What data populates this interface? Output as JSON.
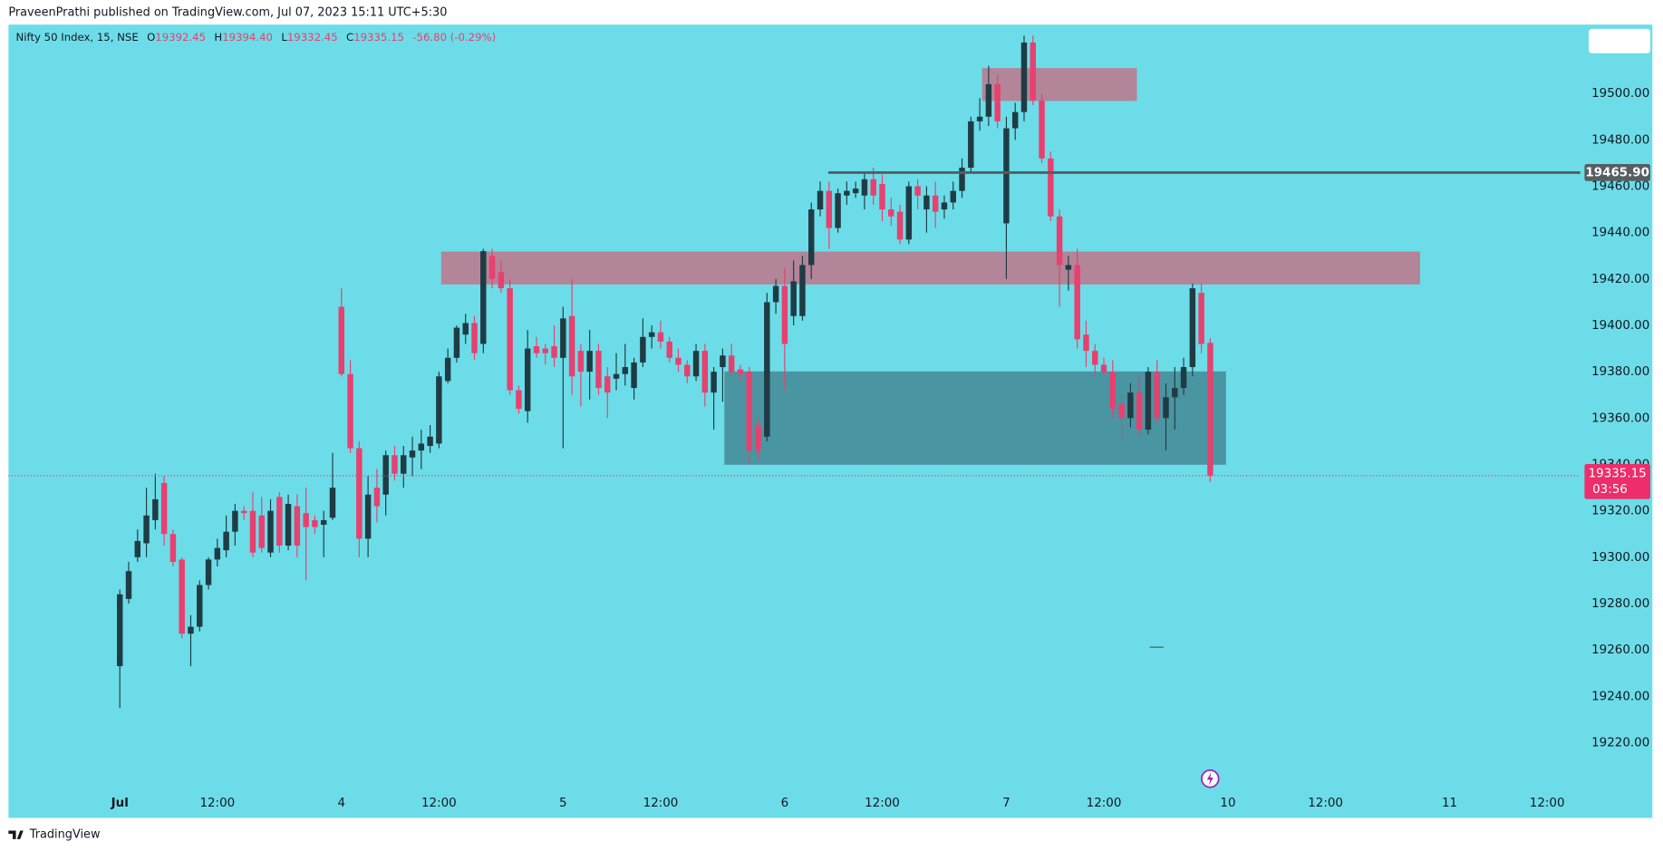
{
  "header": {
    "publisher": "PraveenPrathi published on TradingView.com, Jul 07, 2023 15:11 UTC+5:30"
  },
  "footer": {
    "brand": "TradingView"
  },
  "chart_data": {
    "type": "candlestick",
    "title": "Nifty 50 Index, 15, NSE",
    "legend": [
      "O",
      "19392.45",
      "H",
      "19394.40",
      "L",
      "19332.45",
      "C",
      "19335.15",
      "-56.80 (-0.29%)"
    ],
    "up_color": "#1f3c44",
    "down_color": "#e8406f",
    "background": "#6cdde8",
    "open": [
      19253,
      19282,
      19300,
      19306,
      19316,
      19332,
      19310,
      19299,
      19267,
      19270,
      19288,
      19299,
      19303,
      19311,
      19320,
      19320,
      19318,
      19302,
      19326,
      19305,
      19322,
      19319,
      19316,
      19314,
      19317,
      19408,
      19379,
      19347,
      19308,
      19330,
      19327,
      19344,
      19336,
      19343,
      19346,
      19348,
      19349,
      19376,
      19386,
      19396,
      19401,
      19392,
      19430,
      19423,
      19416,
      19372,
      19363,
      19391,
      19390,
      19391,
      19386,
      19404,
      19389,
      19380,
      19389,
      19378,
      19377,
      19379,
      19373,
      19384,
      19395,
      19397,
      19393,
      19386,
      19383,
      19378,
      19389,
      19371,
      19382,
      19387,
      19381,
      19380,
      19357,
      19352,
      19410,
      19417,
      19404,
      19404,
      19426,
      19450,
      19458,
      19442,
      19456,
      19457,
      19456,
      19463,
      19461,
      19450,
      19449,
      19437,
      19460,
      19450,
      19456,
      19450,
      19453,
      19458,
      19468,
      19488,
      19490,
      19504,
      19444,
      19485,
      19492,
      19522,
      19497,
      19472,
      19447,
      19424,
      19426,
      19396,
      19389,
      19383,
      19380,
      19366,
      19360,
      19371,
      19355,
      19380,
      19360,
      19369,
      19373,
      19382,
      19414,
      19392.45
    ],
    "high": [
      19286,
      19298,
      19312,
      19330,
      19336,
      19335,
      19312,
      19300,
      19275,
      19290,
      19300,
      19308,
      19318,
      19323,
      19322,
      19328,
      19326,
      19325,
      19328,
      19327,
      19327,
      19330,
      19318,
      19320,
      19345,
      19416,
      19385,
      19350,
      19335,
      19338,
      19346,
      19348,
      19348,
      19352,
      19355,
      19357,
      19380,
      19390,
      19400,
      19405,
      19404,
      19433,
      19433,
      19428,
      19420,
      19374,
      19398,
      19395,
      19392,
      19400,
      19408,
      19420,
      19392,
      19398,
      19392,
      19382,
      19388,
      19392,
      19386,
      19403,
      19400,
      19402,
      19395,
      19390,
      19385,
      19392,
      19392,
      19382,
      19390,
      19392,
      19383,
      19382,
      19360,
      19414,
      19420,
      19425,
      19428,
      19430,
      19453,
      19462,
      19462,
      19459,
      19462,
      19462,
      19466,
      19468,
      19465,
      19455,
      19452,
      19462,
      19463,
      19460,
      19462,
      19456,
      19462,
      19472,
      19490,
      19498,
      19512,
      19508,
      19490,
      19496,
      19525,
      19525,
      19500,
      19475,
      19450,
      19430,
      19433,
      19402,
      19392,
      19386,
      19385,
      19370,
      19375,
      19378,
      19382,
      19385,
      19375,
      19382,
      19386,
      19418,
      19418,
      19394.4
    ],
    "low": [
      19235,
      19280,
      19298,
      19300,
      19312,
      19305,
      19296,
      19265,
      19253,
      19268,
      19286,
      19296,
      19300,
      19305,
      19316,
      19300,
      19302,
      19300,
      19302,
      19303,
      19300,
      19290,
      19310,
      19300,
      19316,
      19378,
      19345,
      19300,
      19300,
      19315,
      19318,
      19333,
      19330,
      19335,
      19338,
      19345,
      19347,
      19375,
      19384,
      19392,
      19385,
      19388,
      19416,
      19414,
      19370,
      19362,
      19358,
      19386,
      19383,
      19382,
      19347,
      19370,
      19365,
      19368,
      19370,
      19360,
      19372,
      19374,
      19368,
      19382,
      19390,
      19390,
      19384,
      19380,
      19375,
      19376,
      19365,
      19355,
      19367,
      19378,
      19376,
      19340,
      19342,
      19350,
      19405,
      19372,
      19400,
      19402,
      19420,
      19447,
      19433,
      19440,
      19452,
      19455,
      19450,
      19452,
      19445,
      19443,
      19435,
      19435,
      19450,
      19440,
      19442,
      19446,
      19450,
      19455,
      19466,
      19484,
      19486,
      19485,
      19420,
      19480,
      19488,
      19495,
      19470,
      19445,
      19408,
      19415,
      19390,
      19382,
      19378,
      19378,
      19360,
      19350,
      19356,
      19352,
      19353,
      19358,
      19346,
      19355,
      19370,
      19378,
      19388,
      19332.45
    ],
    "close": [
      19284,
      19294,
      19307,
      19318,
      19325,
      19310,
      19298,
      19267,
      19270,
      19288,
      19299,
      19304,
      19311,
      19320,
      19319,
      19302,
      19304,
      19320,
      19305,
      19323,
      19305,
      19313,
      19313,
      19316,
      19330,
      19379,
      19347,
      19308,
      19327,
      19322,
      19344,
      19336,
      19344,
      19346,
      19349,
      19352,
      19378,
      19386,
      19399,
      19401,
      19388,
      19432,
      19420,
      19416,
      19372,
      19364,
      19390,
      19388,
      19388,
      19386,
      19403,
      19378,
      19380,
      19389,
      19373,
      19371,
      19379,
      19382,
      19384,
      19395,
      19397,
      19393,
      19386,
      19383,
      19378,
      19389,
      19371,
      19380,
      19387,
      19380,
      19379,
      19346,
      19346,
      19410,
      19417,
      19392,
      19419,
      19426,
      19450,
      19458,
      19442,
      19457,
      19458,
      19459,
      19463,
      19456,
      19450,
      19447,
      19437,
      19460,
      19456,
      19456,
      19449,
      19453,
      19458,
      19468,
      19488,
      19490,
      19504,
      19488,
      19485,
      19492,
      19522,
      19497,
      19472,
      19447,
      19426,
      19426,
      19394,
      19389,
      19383,
      19380,
      19364,
      19360,
      19371,
      19355,
      19380,
      19360,
      19369,
      19373,
      19382,
      19416,
      19392,
      19335.15
    ],
    "xlim": [
      -12.5,
      164.5
    ],
    "xticks": [
      {
        "value": 0,
        "label": "Jul"
      },
      {
        "value": 11,
        "label": "12:00"
      },
      {
        "value": 25,
        "label": "4"
      },
      {
        "value": 36,
        "label": "12:00"
      },
      {
        "value": 50,
        "label": "5"
      },
      {
        "value": 61,
        "label": "12:00"
      },
      {
        "value": 75,
        "label": "6"
      },
      {
        "value": 86,
        "label": "12:00"
      },
      {
        "value": 100,
        "label": "7"
      },
      {
        "value": 111,
        "label": "12:00"
      },
      {
        "value": 125,
        "label": "10"
      },
      {
        "value": 136,
        "label": "12:00"
      },
      {
        "value": 150,
        "label": "11"
      },
      {
        "value": 161,
        "label": "12:00"
      }
    ],
    "ylim": [
      19188,
      19530
    ],
    "yticks": [
      {
        "value": 19220,
        "label": "19220.00"
      },
      {
        "value": 19240,
        "label": "19240.00"
      },
      {
        "value": 19260,
        "label": "19260.00"
      },
      {
        "value": 19280,
        "label": "19280.00"
      },
      {
        "value": 19300,
        "label": "19300.00"
      },
      {
        "value": 19320,
        "label": "19320.00"
      },
      {
        "value": 19340,
        "label": "19340.00"
      },
      {
        "value": 19360,
        "label": "19360.00"
      },
      {
        "value": 19380,
        "label": "19380.00"
      },
      {
        "value": 19400,
        "label": "19400.00"
      },
      {
        "value": 19420,
        "label": "19420.00"
      },
      {
        "value": 19440,
        "label": "19440.00"
      },
      {
        "value": 19460,
        "label": "19460.00"
      },
      {
        "value": 19480,
        "label": "19480.00"
      },
      {
        "value": 19500,
        "label": "19500.00"
      }
    ],
    "price_line": {
      "value": 19465.9,
      "label": "19465.90"
    },
    "last_price_label": "19335.15",
    "countdown": "03:56"
  }
}
